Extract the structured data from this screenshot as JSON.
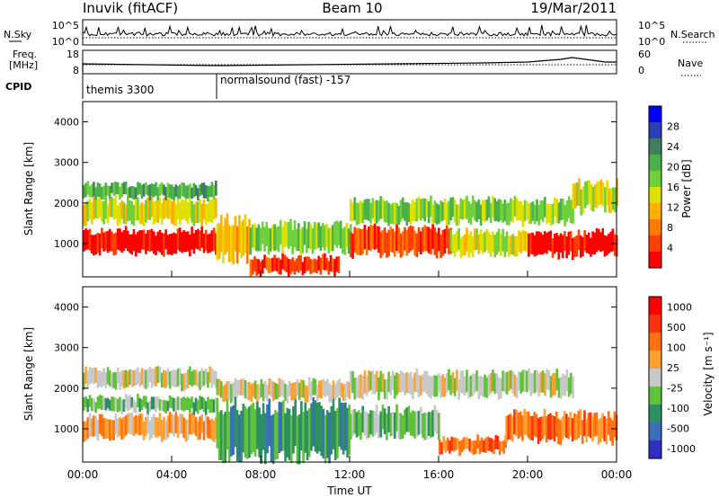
{
  "header": {
    "station": "Inuvik (fitACF)",
    "beam": "Beam 10",
    "date": "19/Mar/2011"
  },
  "noise_panel": {
    "left_label": "N.Sky",
    "left_ticks": [
      "10^5",
      "10^0"
    ],
    "right_label": "N.Search",
    "right_ticks": [
      "10^5",
      "10^0"
    ]
  },
  "freq_panel": {
    "left_label_line1": "Freq.",
    "left_label_line2": "[MHz]",
    "left_ticks": [
      "18",
      "8"
    ],
    "right_label": "Nave",
    "right_ticks": [
      "60",
      "0"
    ]
  },
  "cpid": {
    "label": "CPID",
    "segments": [
      {
        "name": "themis 3300",
        "start_hour": 0
      },
      {
        "name": "normalsound (fast) -157",
        "start_hour": 6
      }
    ]
  },
  "colors": {
    "power": [
      "#0000ff",
      "#2b3fb4",
      "#3f7f5f",
      "#4cb048",
      "#6fd03c",
      "#e0e000",
      "#ffb000",
      "#ff7a00",
      "#ff4000",
      "#ff0000"
    ],
    "velocity": [
      "#3030c0",
      "#3a6fb8",
      "#2e8f62",
      "#5fc23a",
      "#c8c8c8",
      "#ffa030",
      "#ff7010",
      "#ff3010",
      "#ff0000"
    ]
  },
  "chart_data": [
    {
      "type": "heatmap",
      "title": "Power",
      "ylabel": "Slant Range [km]",
      "xlabel": "",
      "x_range_hours": [
        0,
        24
      ],
      "ylim": [
        180,
        4500
      ],
      "yticks": [
        "1000",
        "2000",
        "3000",
        "4000"
      ],
      "colorbar_label": "Power [dB]",
      "colorbar_ticks": [
        "4",
        "8",
        "12",
        "16",
        "20",
        "24",
        "28"
      ],
      "bands": [
        {
          "t0": 0,
          "t1": 6,
          "r0": 750,
          "r1": 1350,
          "level": 9
        },
        {
          "t0": 0,
          "t1": 6,
          "r0": 1500,
          "r1": 2100,
          "level": 5
        },
        {
          "t0": 0,
          "t1": 6,
          "r0": 2100,
          "r1": 2500,
          "level": 3
        },
        {
          "t0": 6,
          "t1": 7.5,
          "r0": 600,
          "r1": 1600,
          "level": 6
        },
        {
          "t0": 7.5,
          "t1": 11.5,
          "r0": 250,
          "r1": 700,
          "level": 8
        },
        {
          "t0": 7.5,
          "t1": 12,
          "r0": 800,
          "r1": 1500,
          "level": 4
        },
        {
          "t0": 12,
          "t1": 16.5,
          "r0": 700,
          "r1": 1400,
          "level": 8
        },
        {
          "t0": 12,
          "t1": 22,
          "r0": 1500,
          "r1": 2100,
          "level": 4
        },
        {
          "t0": 16.5,
          "t1": 20,
          "r0": 700,
          "r1": 1300,
          "level": 5
        },
        {
          "t0": 20,
          "t1": 24,
          "r0": 700,
          "r1": 1300,
          "level": 9
        },
        {
          "t0": 22,
          "t1": 24,
          "r0": 1800,
          "r1": 2500,
          "level": 5
        }
      ]
    },
    {
      "type": "heatmap",
      "title": "Velocity",
      "ylabel": "Slant Range [km]",
      "xlabel": "Time UT",
      "x_range_hours": [
        0,
        24
      ],
      "ylim": [
        180,
        4500
      ],
      "yticks": [
        "1000",
        "2000",
        "3000",
        "4000"
      ],
      "xticks": [
        "00:00",
        "04:00",
        "08:00",
        "12:00",
        "16:00",
        "20:00",
        "00:00"
      ],
      "colorbar_label": "Velocity [m s⁻¹]",
      "colorbar_ticks": [
        "1000",
        "500",
        "100",
        "25",
        "-25",
        "-100",
        "-500",
        "-1000"
      ],
      "bands": [
        {
          "t0": 0,
          "t1": 6,
          "r0": 750,
          "r1": 1350,
          "level": 5
        },
        {
          "t0": 0,
          "t1": 6,
          "r0": 1400,
          "r1": 1800,
          "level": 3
        },
        {
          "t0": 0,
          "t1": 6,
          "r0": 2000,
          "r1": 2500,
          "level": 4
        },
        {
          "t0": 6,
          "t1": 12,
          "r0": 300,
          "r1": 1600,
          "level": 2
        },
        {
          "t0": 6,
          "t1": 12,
          "r0": 1700,
          "r1": 2200,
          "level": 4
        },
        {
          "t0": 12,
          "t1": 16,
          "r0": 800,
          "r1": 1500,
          "level": 3
        },
        {
          "t0": 12,
          "t1": 22,
          "r0": 1800,
          "r1": 2400,
          "level": 4
        },
        {
          "t0": 16,
          "t1": 19,
          "r0": 400,
          "r1": 800,
          "level": 6
        },
        {
          "t0": 19,
          "t1": 24,
          "r0": 700,
          "r1": 1400,
          "level": 6
        }
      ]
    }
  ]
}
